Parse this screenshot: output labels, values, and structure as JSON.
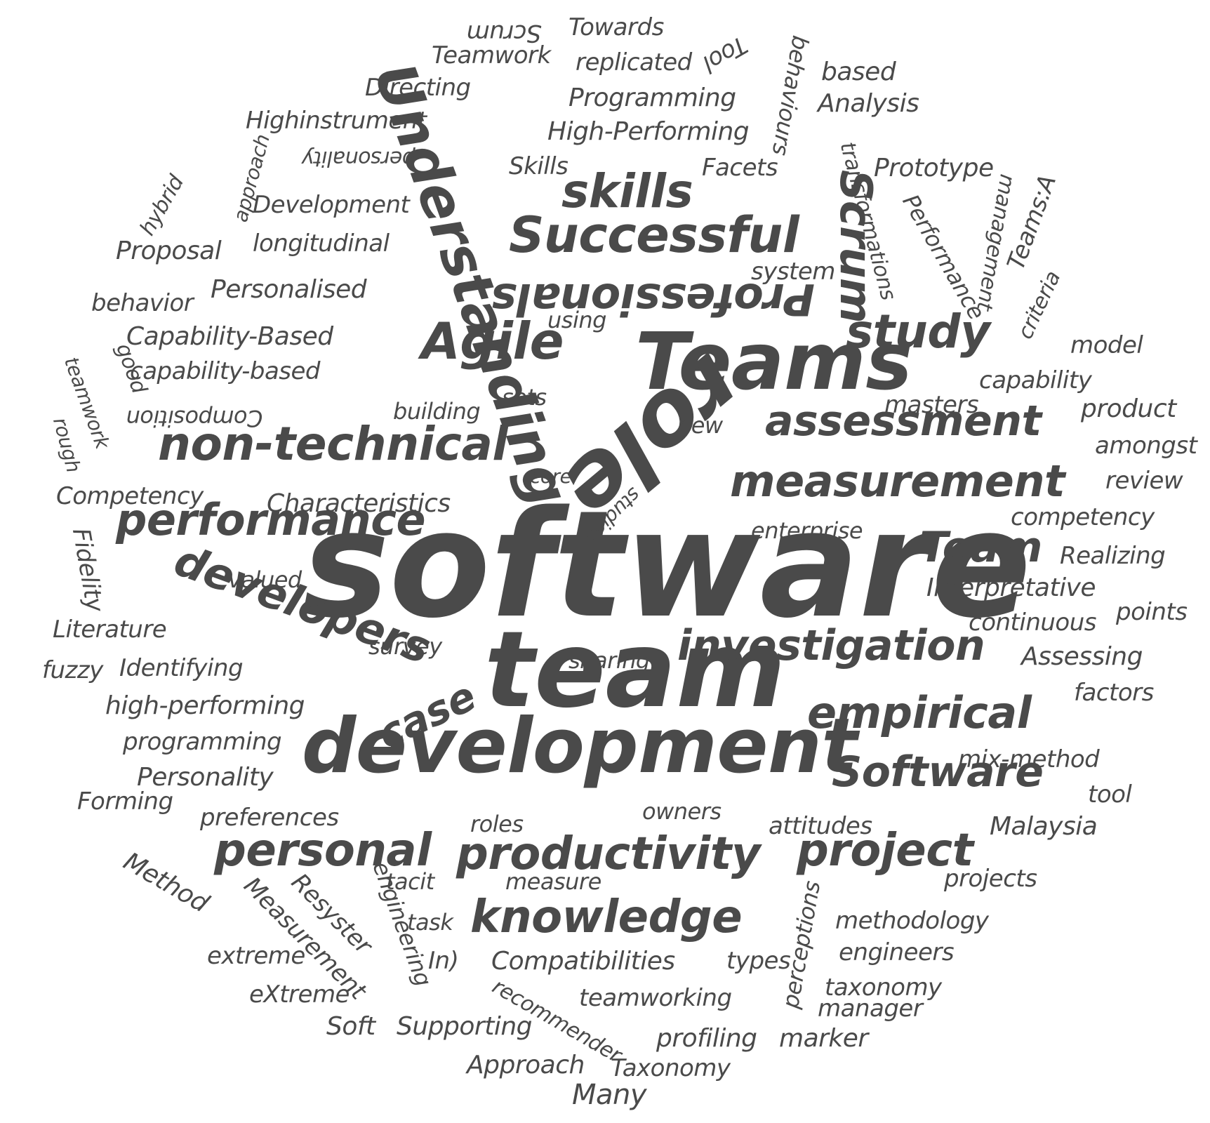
{
  "text_color": "#4a4a4a",
  "background": "#ffffff",
  "words": {
    "software": "software",
    "team": "team",
    "development": "development",
    "teams": "Teams",
    "agile": "Agile",
    "successful": "Successful",
    "skills": "skills",
    "study": "study",
    "assessment": "assessment",
    "measurement": "measurement",
    "non_technical": "non-technical",
    "performance": "performance",
    "team_cap": "Team",
    "investigation": "investigation",
    "empirical": "empirical",
    "software_cap": "Software",
    "productivity": "productivity",
    "project": "project",
    "personal": "personal",
    "knowledge": "knowledge",
    "developers": "developers",
    "case": "case",
    "understanding": "Understanding",
    "scrum_big": "Scrum",
    "role": "role",
    "professionals": "Professionals",
    "scrum_small": "Scrum",
    "towards": "Towards",
    "teamwork": "Teamwork",
    "replicated": "replicated",
    "tool_rot": "Tool",
    "behaviours": "behaviours",
    "based": "based",
    "directing": "Directing",
    "programming_cap": "Programming",
    "analysis": "Analysis",
    "highinstrument": "Highinstrument",
    "high_performing_cap": "High-Performing",
    "transformations": "transformations",
    "approach_rot": "approach",
    "personality_rot": "personality",
    "skills_small": "Skills",
    "facets": "Facets",
    "prototype": "Prototype",
    "hybrid": "hybrid",
    "development_small": "Development",
    "performance_rot": "Performance",
    "management": "management",
    "teams_a": "Teams:A",
    "proposal": "Proposal",
    "longitudinal": "longitudinal",
    "system": "system",
    "criteria": "criteria",
    "behavior": "behavior",
    "personalised": "Personalised",
    "using": "using",
    "model": "model",
    "capability_based_cap": "Capability-Based",
    "good": "good",
    "capability_based": "capability-based",
    "capability": "capability",
    "teamwork_rot": "teamwork",
    "composition": "Composition",
    "building": "building",
    "sets": "sets",
    "masters": "masters",
    "product": "product",
    "rough": "rough",
    "new": "new",
    "amongst": "amongst",
    "competency_cap": "Competency",
    "core": "core",
    "characteristics": "Characteristics",
    "studies": "studies",
    "review": "review",
    "fidelity": "Fidelity",
    "competency": "competency",
    "enterprise": "enterprise",
    "realizing": "Realizing",
    "valued": "valued",
    "interpretative": "Interpretative",
    "literature": "Literature",
    "continuous": "continuous",
    "points": "points",
    "survey": "survey",
    "sharing": "sharing",
    "assessing": "Assessing",
    "fuzzy": "fuzzy",
    "identifying": "Identifying",
    "high_performing": "high-performing",
    "factors": "factors",
    "programming": "programming",
    "mix_method": "mix-method",
    "personality": "Personality",
    "tool": "tool",
    "forming": "Forming",
    "preferences": "preferences",
    "roles": "roles",
    "owners": "owners",
    "attitudes": "attitudes",
    "malaysia": "Malaysia",
    "method": "Method",
    "measurement_cap": "Measurement",
    "resyster": "Resyster",
    "engineering": "engineering",
    "tacit": "tacit",
    "measure": "measure",
    "perceptions": "perceptions",
    "projects": "projects",
    "task": "task",
    "methodology": "methodology",
    "extreme": "extreme",
    "in": "In)",
    "compatibilities": "Compatibilities",
    "types": "types",
    "engineers": "engineers",
    "extreme_cap": "eXtreme",
    "recommender": "recommender",
    "teamworking": "teamworking",
    "taxonomy": "taxonomy",
    "soft": "Soft",
    "supporting": "Supporting",
    "manager": "manager",
    "profiling": "profiling",
    "marker": "marker",
    "approach": "Approach",
    "taxonomy_cap": "Taxonomy",
    "many": "Many"
  }
}
